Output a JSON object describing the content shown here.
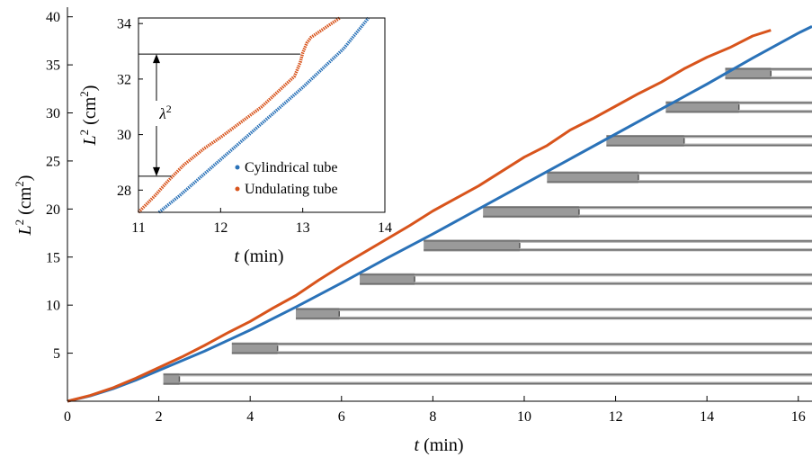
{
  "chart_data": [
    {
      "id": "main",
      "type": "line",
      "xlabel_var": "t",
      "xlabel_unit": " (min)",
      "ylabel_var": "L",
      "ylabel_sup": "2",
      "ylabel_unit_open": " (cm",
      "ylabel_unit_sup": "2",
      "ylabel_unit_close": ")",
      "xlim": [
        0,
        16.3
      ],
      "ylim": [
        0,
        41
      ],
      "xticks": [
        0,
        2,
        4,
        6,
        8,
        10,
        12,
        14,
        16
      ],
      "yticks": [
        5,
        10,
        15,
        20,
        25,
        30,
        35,
        40
      ],
      "series": [
        {
          "color": "#2a72b8",
          "x": [
            0,
            0.5,
            1,
            1.5,
            2,
            3,
            4,
            5,
            6,
            7,
            8,
            9,
            10,
            11,
            12,
            13,
            14,
            15,
            16,
            16.3
          ],
          "y": [
            0,
            0.55,
            1.3,
            2.2,
            3.2,
            5.2,
            7.4,
            9.8,
            12.3,
            14.9,
            17.4,
            20.0,
            22.6,
            25.2,
            27.8,
            30.4,
            33.0,
            35.7,
            38.3,
            39.0
          ]
        },
        {
          "color": "#d8541c",
          "x": [
            0,
            0.5,
            1,
            1.5,
            2,
            2.5,
            3,
            3.5,
            4,
            4.5,
            5,
            5.5,
            6,
            6.5,
            7,
            7.5,
            8,
            8.5,
            9,
            9.5,
            10,
            10.5,
            11,
            11.5,
            12,
            12.5,
            13,
            13.5,
            14,
            14.5,
            15,
            15.4
          ],
          "y": [
            0,
            0.6,
            1.4,
            2.4,
            3.5,
            4.6,
            5.8,
            7.1,
            8.3,
            9.7,
            11.0,
            12.6,
            14.1,
            15.5,
            16.9,
            18.3,
            19.8,
            21.1,
            22.4,
            23.9,
            25.4,
            26.6,
            28.2,
            29.4,
            30.7,
            32.0,
            33.2,
            34.6,
            35.8,
            36.8,
            38.0,
            38.6
          ]
        }
      ],
      "photos": [
        {
          "t0": 2.1,
          "t1": 16.3,
          "l": 2.3,
          "front": 2.45,
          "y": 2.3
        },
        {
          "t0": 3.6,
          "t1": 16.3,
          "l": 5.6,
          "front": 4.6,
          "y": 5.5
        },
        {
          "t0": 5.0,
          "t1": 16.3,
          "l": 9.0,
          "front": 5.95,
          "y": 9.1
        },
        {
          "t0": 6.4,
          "t1": 16.3,
          "l": 12.6,
          "front": 7.6,
          "y": 12.7
        },
        {
          "t0": 7.8,
          "t1": 16.3,
          "l": 16.1,
          "front": 9.9,
          "y": 16.2
        },
        {
          "t0": 9.1,
          "t1": 16.3,
          "l": 19.6,
          "front": 11.2,
          "y": 19.7
        },
        {
          "t0": 10.5,
          "t1": 16.3,
          "l": 23.2,
          "front": 12.5,
          "y": 23.3
        },
        {
          "t0": 11.8,
          "t1": 16.3,
          "l": 27.0,
          "front": 13.5,
          "y": 27.1
        },
        {
          "t0": 13.1,
          "t1": 16.3,
          "l": 30.5,
          "front": 14.7,
          "y": 30.6
        },
        {
          "t0": 14.4,
          "t1": 16.3,
          "l": 34.0,
          "front": 15.4,
          "y": 34.1
        }
      ]
    },
    {
      "id": "inset",
      "type": "scatter",
      "xlabel_var": "t",
      "xlabel_unit": " (min)",
      "ylabel_var": "L",
      "ylabel_sup": "2",
      "ylabel_unit_open": " (cm",
      "ylabel_unit_sup": "2",
      "ylabel_unit_close": ")",
      "xlim": [
        11,
        14
      ],
      "ylim": [
        27.2,
        34.2
      ],
      "xticks": [
        11,
        12,
        13,
        14
      ],
      "yticks": [
        28,
        30,
        32,
        34
      ],
      "annotation_var": "λ",
      "annotation_sup": "2",
      "lambda_from": 28.5,
      "lambda_to": 32.9,
      "legend": [
        {
          "label": "Cylindrical tube",
          "color": "#2a72b8"
        },
        {
          "label": "Undulating tube",
          "color": "#d8541c"
        }
      ],
      "legend_position": "bottom-right",
      "series": [
        {
          "name": "Cylindrical tube",
          "color": "#2a72b8",
          "x": [
            11.25,
            11.5,
            12.0,
            12.5,
            13.0,
            13.5,
            13.8
          ],
          "y": [
            27.2,
            27.8,
            29.1,
            30.4,
            31.7,
            33.1,
            34.2
          ]
        },
        {
          "name": "Undulating tube",
          "color": "#d8541c",
          "x": [
            11.0,
            11.2,
            11.35,
            11.45,
            11.55,
            11.8,
            12.0,
            12.5,
            12.9,
            12.97,
            13.0,
            13.05,
            13.1,
            13.25,
            13.45
          ],
          "y": [
            27.2,
            27.8,
            28.3,
            28.6,
            28.9,
            29.5,
            29.9,
            31.0,
            32.1,
            32.6,
            32.95,
            33.3,
            33.5,
            33.8,
            34.2
          ]
        }
      ]
    }
  ]
}
